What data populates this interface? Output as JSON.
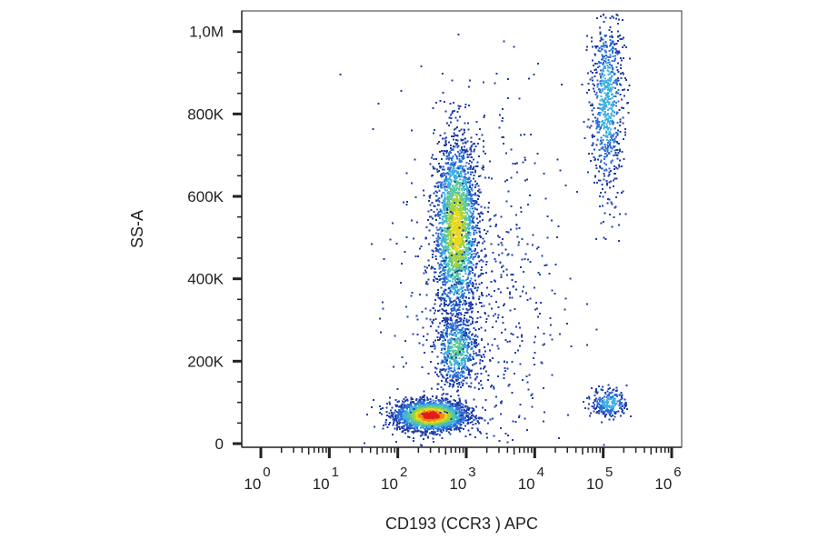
{
  "chart_data": {
    "type": "scatter",
    "title": "",
    "xlabel": "CD193 (CCR3 ) APC",
    "ylabel": "SS-A",
    "x_scale": "log",
    "y_scale": "linear",
    "xlim": [
      1,
      1000000
    ],
    "ylim": [
      0,
      1050000
    ],
    "x_ticks": [
      {
        "value": 1,
        "base": "10",
        "exp": "0"
      },
      {
        "value": 10,
        "base": "10",
        "exp": "1"
      },
      {
        "value": 100,
        "base": "10",
        "exp": "2"
      },
      {
        "value": 1000,
        "base": "10",
        "exp": "3"
      },
      {
        "value": 10000,
        "base": "10",
        "exp": "4"
      },
      {
        "value": 100000,
        "base": "10",
        "exp": "5"
      },
      {
        "value": 1000000,
        "base": "10",
        "exp": "6"
      }
    ],
    "y_ticks": [
      {
        "value": 0,
        "label": "0"
      },
      {
        "value": 200000,
        "label": "200K"
      },
      {
        "value": 400000,
        "label": "400K"
      },
      {
        "value": 600000,
        "label": "600K"
      },
      {
        "value": 800000,
        "label": "800K"
      },
      {
        "value": 1000000,
        "label": "1,0M"
      }
    ],
    "grid": false,
    "legend": "none",
    "color_scale": [
      "#1f3ea8",
      "#2d6fd6",
      "#3fb0e0",
      "#58c99a",
      "#9fd33c",
      "#e8d81e",
      "#f28a12",
      "#e41a1c"
    ],
    "populations": [
      {
        "x_center": 300,
        "y_center": 70000,
        "x_spread_log": 0.25,
        "y_spread": 18000,
        "count": 2600,
        "peak_density": 1.0
      },
      {
        "x_center": 700,
        "y_center": 520000,
        "x_spread_log": 0.16,
        "y_spread": 110000,
        "count": 2300,
        "peak_density": 0.7
      },
      {
        "x_center": 700,
        "y_center": 230000,
        "x_spread_log": 0.16,
        "y_spread": 45000,
        "count": 600,
        "peak_density": 0.45
      },
      {
        "x_center": 110000,
        "y_center": 830000,
        "x_spread_log": 0.12,
        "y_spread": 120000,
        "count": 750,
        "peak_density": 0.35
      },
      {
        "x_center": 120000,
        "y_center": 100000,
        "x_spread_log": 0.13,
        "y_spread": 18000,
        "count": 260,
        "peak_density": 0.35
      },
      {
        "x_center": 1500,
        "y_center": 350000,
        "x_spread_log": 0.6,
        "y_spread": 260000,
        "count": 700,
        "peak_density": 0.12
      }
    ]
  }
}
